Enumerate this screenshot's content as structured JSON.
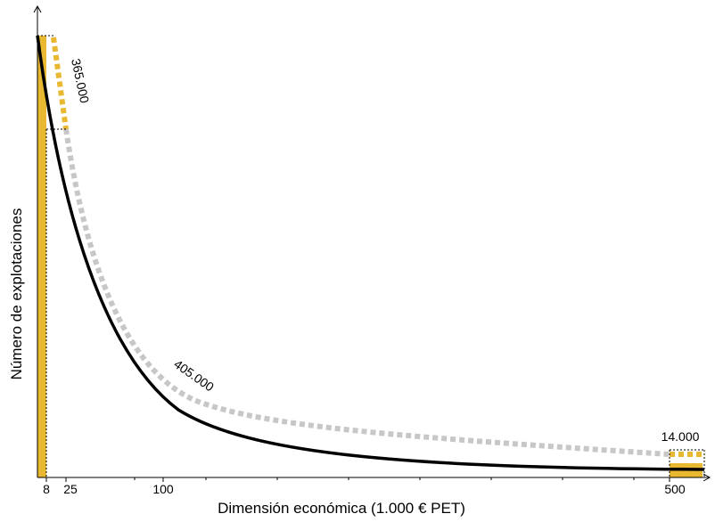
{
  "chart_data": {
    "type": "line",
    "title": "",
    "xlabel": "Dimensión económica (1.000 € PET)",
    "ylabel": "Número de explotaciones",
    "x_ticks": [
      8,
      25,
      100,
      500
    ],
    "x_tick_labels": [
      "8",
      "25",
      "100",
      "500"
    ],
    "y_ticks_labeled": false,
    "annotations": [
      {
        "text": "365.000",
        "near_x": 16
      },
      {
        "text": "405.000",
        "near_x": 110
      },
      {
        "text": "14.000",
        "near_x": 510
      }
    ],
    "series": [
      {
        "style": "solid-black",
        "shape": "decreasing-exponential"
      },
      {
        "style": "dashed-gray",
        "shape": "decreasing-exponential-offset"
      }
    ],
    "highlights": [
      {
        "range": [
          0,
          8
        ],
        "color": "#E8B830"
      },
      {
        "range": [
          500,
          550
        ],
        "color": "#E8B830"
      }
    ],
    "colors": {
      "highlight": "#E8B830",
      "dashed_curve": "#C7C7C7",
      "main_curve": "#000000",
      "axis": "#000000"
    }
  }
}
